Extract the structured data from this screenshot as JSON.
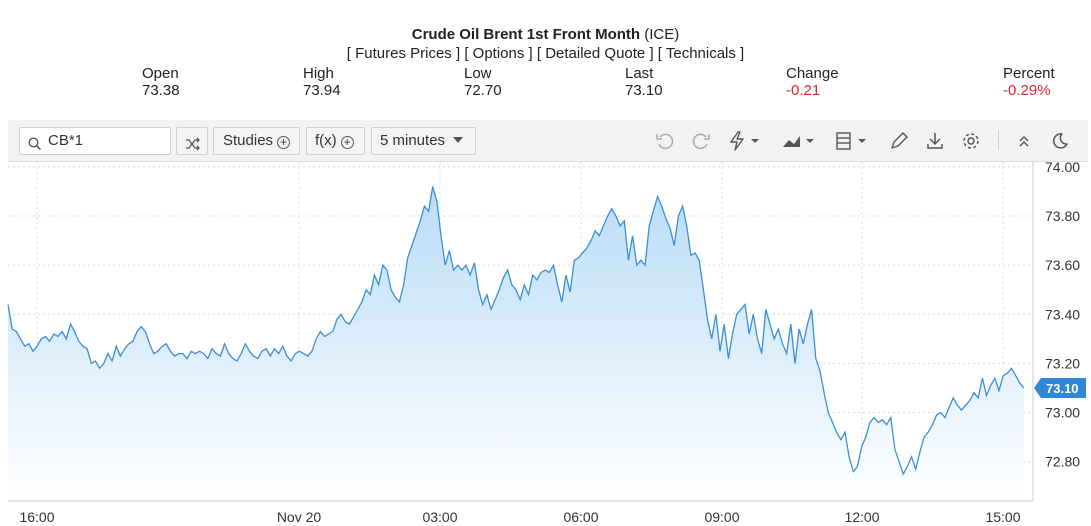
{
  "header": {
    "title_bold": "Crude Oil Brent 1st Front Month",
    "title_exchange": "(ICE)",
    "links": [
      "[ Futures Prices ]",
      "[ Options ]",
      "[ Detailed Quote ]",
      "[ Technicals ]"
    ]
  },
  "stats": {
    "open_label": "Open",
    "open_value": "73.38",
    "high_label": "High",
    "high_value": "73.94",
    "low_label": "Low",
    "low_value": "72.70",
    "last_label": "Last",
    "last_value": "73.10",
    "change_label": "Change",
    "change_value": "-0.21",
    "percent_label": "Percent",
    "percent_value": "-0.29%"
  },
  "toolbar": {
    "symbol_value": "CB*1",
    "studies_label": "Studies",
    "fx_label": "f(x)",
    "interval_label": "5 minutes"
  },
  "colors": {
    "line": "#3b8fd4",
    "fill_top": "#b9dcf6",
    "fill_bottom": "#ffffff",
    "badge": "#2f86d6",
    "negative": "#e0243a",
    "grid": "#dddddd"
  },
  "chart_data": {
    "type": "area",
    "ylim": [
      72.64,
      74.02
    ],
    "y_ticks": [
      72.8,
      73.0,
      73.2,
      73.4,
      73.6,
      73.8,
      74.0
    ],
    "y_tick_labels": [
      "72.80",
      "73.00",
      "73.20",
      "73.40",
      "73.60",
      "73.80",
      "74.00"
    ],
    "x_ticks": [
      "16:00",
      "Nov 20",
      "03:00",
      "06:00",
      "09:00",
      "12:00",
      "15:00"
    ],
    "last_value_label": "73.10",
    "grid": true,
    "series": [
      {
        "values": [
          73.44,
          73.34,
          73.33,
          73.3,
          73.27,
          73.28,
          73.25,
          73.27,
          73.3,
          73.31,
          73.29,
          73.32,
          73.31,
          73.33,
          73.3,
          73.36,
          73.33,
          73.29,
          73.27,
          73.26,
          73.2,
          73.21,
          73.18,
          73.2,
          73.24,
          73.21,
          73.27,
          73.23,
          73.26,
          73.28,
          73.29,
          73.33,
          73.35,
          73.33,
          73.28,
          73.24,
          73.25,
          73.27,
          73.28,
          73.25,
          73.23,
          73.24,
          73.24,
          73.22,
          73.25,
          73.24,
          73.25,
          73.24,
          73.22,
          73.26,
          73.24,
          73.23,
          73.28,
          73.24,
          73.22,
          73.21,
          73.24,
          73.28,
          73.25,
          73.23,
          73.22,
          73.25,
          73.26,
          73.23,
          73.26,
          73.24,
          73.27,
          73.23,
          73.21,
          73.24,
          73.25,
          73.24,
          73.23,
          73.25,
          73.3,
          73.33,
          73.31,
          73.32,
          73.33,
          73.38,
          73.4,
          73.37,
          73.36,
          73.39,
          73.42,
          73.45,
          73.5,
          73.48,
          73.56,
          73.52,
          73.6,
          73.58,
          73.5,
          73.47,
          73.45,
          73.52,
          73.63,
          73.68,
          73.73,
          73.78,
          73.84,
          73.82,
          73.92,
          73.86,
          73.72,
          73.6,
          73.66,
          73.58,
          73.6,
          73.58,
          73.6,
          73.56,
          73.61,
          73.5,
          73.44,
          73.48,
          73.42,
          73.46,
          73.5,
          73.55,
          73.58,
          73.52,
          73.5,
          73.46,
          73.52,
          73.48,
          73.56,
          73.54,
          73.57,
          73.58,
          73.57,
          73.6,
          73.52,
          73.45,
          73.56,
          73.49,
          73.62,
          73.63,
          73.65,
          73.67,
          73.7,
          73.74,
          73.72,
          73.76,
          73.8,
          73.83,
          73.8,
          73.76,
          73.78,
          73.62,
          73.72,
          73.6,
          73.62,
          73.6,
          73.76,
          73.82,
          73.88,
          73.84,
          73.79,
          73.75,
          73.68,
          73.8,
          73.84,
          73.76,
          73.64,
          73.65,
          73.62,
          73.5,
          73.38,
          73.3,
          73.4,
          73.25,
          73.36,
          73.22,
          73.32,
          73.4,
          73.42,
          73.44,
          73.32,
          73.4,
          73.3,
          73.24,
          73.42,
          73.36,
          73.3,
          73.34,
          73.28,
          73.24,
          73.36,
          73.2,
          73.34,
          73.28,
          73.36,
          73.42,
          73.22,
          73.17,
          73.08,
          73.0,
          72.96,
          72.92,
          72.89,
          72.92,
          72.82,
          72.76,
          72.78,
          72.86,
          72.9,
          72.96,
          72.98,
          72.96,
          72.97,
          72.95,
          72.98,
          72.85,
          72.8,
          72.75,
          72.78,
          72.82,
          72.77,
          72.84,
          72.9,
          72.92,
          72.95,
          72.99,
          73.0,
          72.98,
          73.02,
          73.06,
          73.03,
          73.01,
          73.03,
          73.05,
          73.08,
          73.06,
          73.14,
          73.07,
          73.11,
          73.14,
          73.09,
          73.15,
          73.16,
          73.18,
          73.15,
          73.12,
          73.1
        ]
      }
    ]
  }
}
